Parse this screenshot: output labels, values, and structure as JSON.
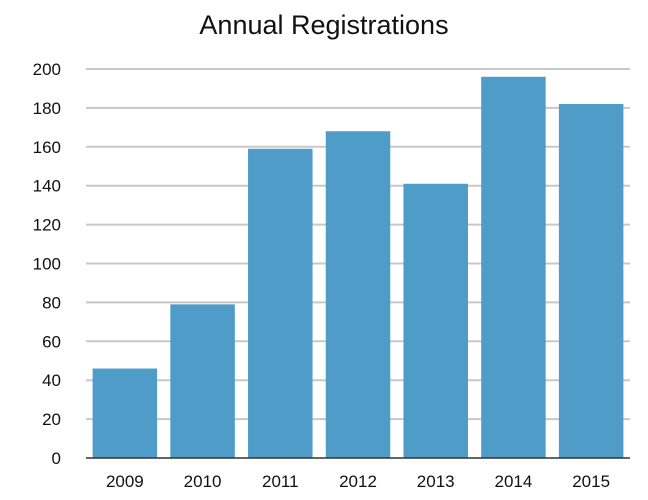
{
  "chart_data": {
    "type": "bar",
    "title": "Annual Registrations",
    "xlabel": "",
    "ylabel": "",
    "categories": [
      "2009",
      "2010",
      "2011",
      "2012",
      "2013",
      "2014",
      "2015"
    ],
    "values": [
      46,
      79,
      159,
      168,
      141,
      196,
      182
    ],
    "ylim": [
      0,
      200
    ],
    "yticks": [
      0,
      20,
      40,
      60,
      80,
      100,
      120,
      140,
      160,
      180,
      200
    ],
    "grid": true,
    "legend": "none",
    "colors": {
      "bar": "#4f9cc8",
      "grid": "#c8c8c8",
      "axis": "#333333"
    }
  }
}
